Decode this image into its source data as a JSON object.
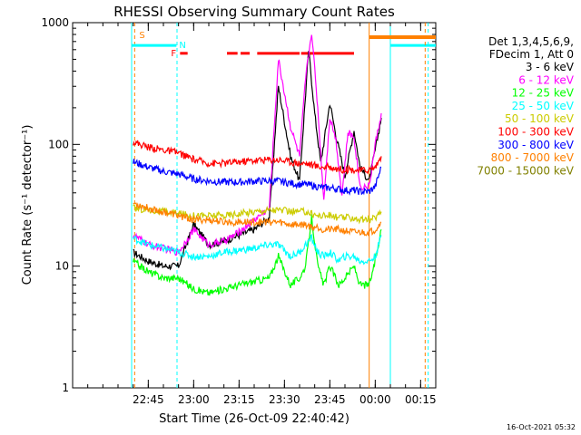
{
  "chart_data": {
    "type": "line",
    "title": "RHESSI Observing Summary Count Rates",
    "xlabel": "Start Time (26-Oct-09 22:40:42)",
    "ylabel": "Count Rate (s⁻¹ detector⁻¹)",
    "yscale": "log",
    "ylim": [
      1,
      1000
    ],
    "xlim_minutes": [
      -20,
      100
    ],
    "y_ticks": [
      "1",
      "10",
      "100",
      "1000"
    ],
    "x_ticks": [
      {
        "label": "22:45",
        "t": 5
      },
      {
        "label": "23:00",
        "t": 20
      },
      {
        "label": "23:15",
        "t": 35
      },
      {
        "label": "23:30",
        "t": 50
      },
      {
        "label": "23:45",
        "t": 65
      },
      {
        "label": "00:00",
        "t": 80
      },
      {
        "label": "00:15",
        "t": 95
      }
    ],
    "legend": {
      "header_line1": "Det 1,3,4,5,6,9,",
      "header_line2": "FDecim 1, Att 0",
      "placement": "top-right"
    },
    "series": [
      {
        "name": "3 - 6 keV",
        "color": "#000000",
        "points": [
          [
            0,
            13
          ],
          [
            5,
            11
          ],
          [
            10,
            10
          ],
          [
            15,
            10
          ],
          [
            20,
            22
          ],
          [
            25,
            15
          ],
          [
            30,
            16
          ],
          [
            35,
            18
          ],
          [
            40,
            20
          ],
          [
            45,
            25
          ],
          [
            48,
            300
          ],
          [
            52,
            80
          ],
          [
            55,
            50
          ],
          [
            58,
            600
          ],
          [
            60,
            180
          ],
          [
            62,
            70
          ],
          [
            65,
            220
          ],
          [
            67,
            120
          ],
          [
            70,
            55
          ],
          [
            73,
            130
          ],
          [
            75,
            65
          ],
          [
            78,
            50
          ],
          [
            80,
            90
          ],
          [
            82,
            165
          ]
        ]
      },
      {
        "name": "6 - 12 keV",
        "color": "#ff00ff",
        "points": [
          [
            0,
            18
          ],
          [
            5,
            15
          ],
          [
            10,
            14
          ],
          [
            15,
            13
          ],
          [
            20,
            20
          ],
          [
            25,
            15
          ],
          [
            30,
            16
          ],
          [
            35,
            19
          ],
          [
            40,
            24
          ],
          [
            45,
            30
          ],
          [
            48,
            500
          ],
          [
            52,
            140
          ],
          [
            55,
            80
          ],
          [
            57,
            350
          ],
          [
            59,
            850
          ],
          [
            61,
            200
          ],
          [
            63,
            35
          ],
          [
            65,
            170
          ],
          [
            67,
            110
          ],
          [
            69,
            38
          ],
          [
            71,
            125
          ],
          [
            73,
            115
          ],
          [
            75,
            45
          ],
          [
            78,
            45
          ],
          [
            80,
            100
          ],
          [
            82,
            180
          ]
        ]
      },
      {
        "name": "12 - 25 keV",
        "color": "#00ff00",
        "points": [
          [
            0,
            11
          ],
          [
            5,
            9
          ],
          [
            10,
            8
          ],
          [
            15,
            8
          ],
          [
            20,
            6.5
          ],
          [
            25,
            6
          ],
          [
            30,
            6.5
          ],
          [
            35,
            7
          ],
          [
            40,
            7.5
          ],
          [
            45,
            8
          ],
          [
            48,
            12
          ],
          [
            52,
            7
          ],
          [
            55,
            8
          ],
          [
            57,
            10
          ],
          [
            59,
            25
          ],
          [
            61,
            10
          ],
          [
            63,
            7
          ],
          [
            65,
            10
          ],
          [
            68,
            7
          ],
          [
            70,
            8
          ],
          [
            73,
            10
          ],
          [
            75,
            7
          ],
          [
            78,
            7
          ],
          [
            80,
            11
          ],
          [
            82,
            20
          ]
        ]
      },
      {
        "name": "25 - 50 keV",
        "color": "#00ffff",
        "points": [
          [
            0,
            17
          ],
          [
            5,
            15
          ],
          [
            10,
            14
          ],
          [
            15,
            13
          ],
          [
            20,
            12
          ],
          [
            25,
            12
          ],
          [
            30,
            13
          ],
          [
            35,
            13.5
          ],
          [
            40,
            14
          ],
          [
            45,
            15
          ],
          [
            48,
            15
          ],
          [
            52,
            12
          ],
          [
            55,
            13
          ],
          [
            57,
            15
          ],
          [
            59,
            17
          ],
          [
            61,
            13
          ],
          [
            63,
            12
          ],
          [
            65,
            13
          ],
          [
            68,
            11
          ],
          [
            70,
            12
          ],
          [
            73,
            12
          ],
          [
            75,
            11
          ],
          [
            78,
            11
          ],
          [
            80,
            12
          ],
          [
            82,
            18
          ]
        ]
      },
      {
        "name": "50 - 100 keV",
        "color": "#cccc00",
        "points": [
          [
            0,
            30
          ],
          [
            5,
            29
          ],
          [
            10,
            28
          ],
          [
            15,
            27
          ],
          [
            20,
            26
          ],
          [
            25,
            26
          ],
          [
            30,
            26
          ],
          [
            35,
            27
          ],
          [
            40,
            28
          ],
          [
            45,
            29
          ],
          [
            48,
            29
          ],
          [
            52,
            28
          ],
          [
            55,
            28
          ],
          [
            57,
            28
          ],
          [
            59,
            27
          ],
          [
            61,
            26
          ],
          [
            63,
            26
          ],
          [
            65,
            26
          ],
          [
            68,
            25
          ],
          [
            70,
            25
          ],
          [
            73,
            25
          ],
          [
            75,
            24
          ],
          [
            78,
            24
          ],
          [
            80,
            25
          ],
          [
            82,
            28
          ]
        ]
      },
      {
        "name": "100 - 300 keV",
        "color": "#ff0000",
        "points": [
          [
            0,
            105
          ],
          [
            5,
            95
          ],
          [
            10,
            90
          ],
          [
            15,
            85
          ],
          [
            20,
            75
          ],
          [
            25,
            70
          ],
          [
            30,
            70
          ],
          [
            35,
            72
          ],
          [
            40,
            74
          ],
          [
            45,
            75
          ],
          [
            48,
            75
          ],
          [
            52,
            72
          ],
          [
            55,
            70
          ],
          [
            57,
            70
          ],
          [
            59,
            68
          ],
          [
            61,
            66
          ],
          [
            63,
            65
          ],
          [
            65,
            65
          ],
          [
            68,
            63
          ],
          [
            70,
            62
          ],
          [
            73,
            62
          ],
          [
            75,
            61
          ],
          [
            78,
            62
          ],
          [
            80,
            65
          ],
          [
            82,
            80
          ]
        ]
      },
      {
        "name": "300 - 800 keV",
        "color": "#0000ff",
        "points": [
          [
            0,
            72
          ],
          [
            5,
            65
          ],
          [
            10,
            60
          ],
          [
            15,
            57
          ],
          [
            20,
            52
          ],
          [
            25,
            50
          ],
          [
            30,
            49
          ],
          [
            35,
            49
          ],
          [
            40,
            50
          ],
          [
            45,
            50
          ],
          [
            48,
            50
          ],
          [
            52,
            48
          ],
          [
            55,
            47
          ],
          [
            57,
            47
          ],
          [
            59,
            46
          ],
          [
            61,
            45
          ],
          [
            63,
            44
          ],
          [
            65,
            44
          ],
          [
            68,
            43
          ],
          [
            70,
            42
          ],
          [
            73,
            42
          ],
          [
            75,
            41
          ],
          [
            78,
            41
          ],
          [
            80,
            45
          ],
          [
            82,
            65
          ]
        ]
      },
      {
        "name": "800 - 7000 keV",
        "color": "#ff8000",
        "points": [
          [
            0,
            33
          ],
          [
            5,
            30
          ],
          [
            10,
            28
          ],
          [
            15,
            26
          ],
          [
            20,
            24
          ],
          [
            25,
            24
          ],
          [
            30,
            23
          ],
          [
            35,
            23
          ],
          [
            40,
            23
          ],
          [
            45,
            23
          ],
          [
            48,
            23
          ],
          [
            52,
            22
          ],
          [
            55,
            22
          ],
          [
            57,
            22
          ],
          [
            59,
            21
          ],
          [
            61,
            21
          ],
          [
            63,
            20
          ],
          [
            65,
            20
          ],
          [
            68,
            20
          ],
          [
            70,
            19.5
          ],
          [
            73,
            19
          ],
          [
            75,
            19
          ],
          [
            78,
            19
          ],
          [
            80,
            20
          ],
          [
            82,
            23
          ]
        ]
      },
      {
        "name": "7000 - 15000 keV",
        "color": "#808000",
        "points": []
      }
    ],
    "flags": [
      {
        "label": "S",
        "color": "#ff8000"
      },
      {
        "label": "N",
        "color": "#00ffff"
      },
      {
        "label": "F",
        "color": "#ff0000"
      }
    ],
    "annotation_colors": {
      "saa": "#ff8000",
      "night": "#00ffff",
      "flare": "#ff0000"
    }
  },
  "footer": {
    "stamp": "16-Oct-2021 05:32"
  }
}
